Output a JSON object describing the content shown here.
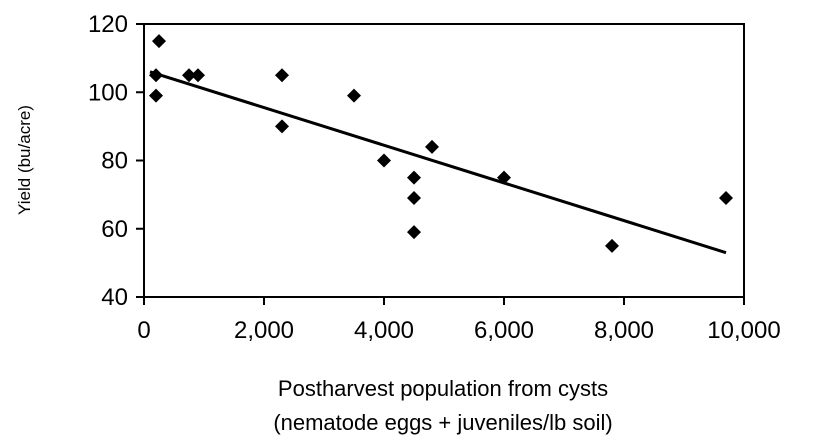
{
  "chart_data": {
    "type": "scatter",
    "title": "",
    "xlabel_lines": [
      "Postharvest population from cysts",
      "(nematode eggs + juveniles/lb soil)"
    ],
    "ylabel": "Yield (bu/acre)",
    "xlim": [
      0,
      10000
    ],
    "ylim": [
      40,
      120
    ],
    "x_ticks": [
      0,
      2000,
      4000,
      6000,
      8000,
      10000
    ],
    "x_tick_labels": [
      "0",
      "2,000",
      "4,000",
      "6,000",
      "8,000",
      "10,000"
    ],
    "y_ticks": [
      40,
      60,
      80,
      100,
      120
    ],
    "y_tick_labels": [
      "40",
      "60",
      "80",
      "100",
      "120"
    ],
    "grid": false,
    "legend": "none",
    "marker": "diamond",
    "marker_color": "#000000",
    "points": [
      {
        "x": 250,
        "y": 115
      },
      {
        "x": 200,
        "y": 105
      },
      {
        "x": 200,
        "y": 99
      },
      {
        "x": 750,
        "y": 105
      },
      {
        "x": 900,
        "y": 105
      },
      {
        "x": 2300,
        "y": 105
      },
      {
        "x": 2300,
        "y": 90
      },
      {
        "x": 3500,
        "y": 99
      },
      {
        "x": 4000,
        "y": 80
      },
      {
        "x": 4500,
        "y": 75
      },
      {
        "x": 4500,
        "y": 69
      },
      {
        "x": 4500,
        "y": 59
      },
      {
        "x": 4800,
        "y": 84
      },
      {
        "x": 6000,
        "y": 75
      },
      {
        "x": 7800,
        "y": 55
      },
      {
        "x": 9700,
        "y": 69
      }
    ],
    "trendline": {
      "x": [
        100,
        9700
      ],
      "y": [
        106,
        53
      ]
    }
  }
}
